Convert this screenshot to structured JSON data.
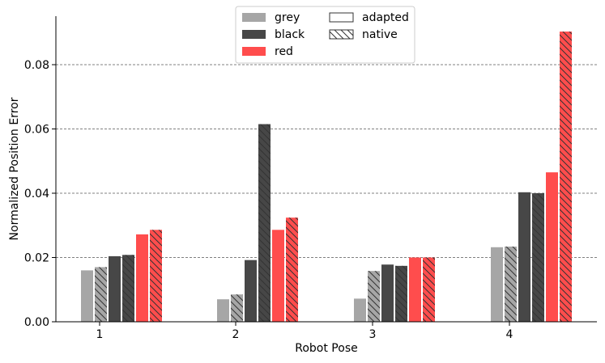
{
  "chart_data": {
    "type": "bar",
    "title": "",
    "xlabel": "Robot Pose",
    "ylabel": "Normalized Position Error",
    "categories": [
      "1",
      "2",
      "3",
      "4"
    ],
    "ylim": [
      0,
      0.095
    ],
    "yticks": [
      0.0,
      0.02,
      0.04,
      0.06,
      0.08
    ],
    "ytick_labels": [
      "0.00",
      "0.02",
      "0.04",
      "0.06",
      "0.08"
    ],
    "grid": "horizontal dashed",
    "legend_placement": "top-center",
    "colors": {
      "grey": "#a6a6a6",
      "black": "#474747",
      "red": "#ff4d4d",
      "hatch": "#333333"
    },
    "series": [
      {
        "name": "grey adapted",
        "color": "grey",
        "variant": "adapted",
        "values": [
          0.016,
          0.007,
          0.0072,
          0.0232
        ]
      },
      {
        "name": "grey native",
        "color": "grey",
        "variant": "native",
        "values": [
          0.017,
          0.0085,
          0.0158,
          0.0234
        ]
      },
      {
        "name": "black adapted",
        "color": "black",
        "variant": "adapted",
        "values": [
          0.0204,
          0.0192,
          0.0178,
          0.0403
        ]
      },
      {
        "name": "black native",
        "color": "black",
        "variant": "native",
        "values": [
          0.0208,
          0.0615,
          0.0174,
          0.04
        ]
      },
      {
        "name": "red adapted",
        "color": "red",
        "variant": "adapted",
        "values": [
          0.0272,
          0.0286,
          0.02,
          0.0465
        ]
      },
      {
        "name": "red native",
        "color": "red",
        "variant": "native",
        "values": [
          0.0286,
          0.0324,
          0.02,
          0.0903
        ]
      }
    ],
    "legend": {
      "colors": [
        {
          "label": "grey",
          "color": "grey"
        },
        {
          "label": "black",
          "color": "black"
        },
        {
          "label": "red",
          "color": "red"
        }
      ],
      "variants": [
        {
          "label": "adapted",
          "variant": "adapted"
        },
        {
          "label": "native",
          "variant": "native"
        }
      ]
    }
  }
}
